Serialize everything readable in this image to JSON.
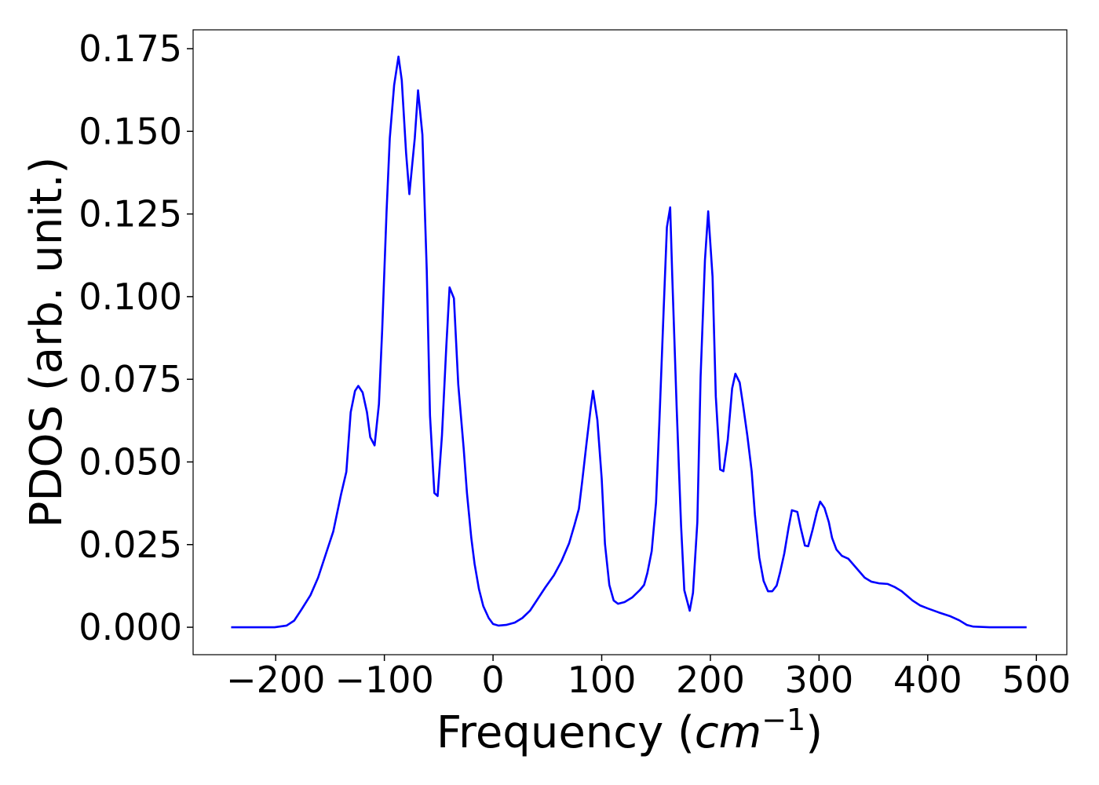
{
  "chart_data": {
    "type": "line",
    "xlabel": [
      "Frequency (",
      "cm",
      "−1",
      ")"
    ],
    "ylabel": "PDOS (arb. unit.)",
    "color": "#0000ff",
    "x": [
      -241,
      -201,
      -190,
      -183,
      -176,
      -168,
      -161,
      -154,
      -147,
      -140,
      -135,
      -131,
      -127,
      -124,
      -120,
      -116,
      -113,
      -109,
      -105,
      -102,
      -98,
      -95,
      -91,
      -87,
      -84,
      -80,
      -77,
      -72,
      -69,
      -65,
      -61,
      -58,
      -54,
      -51,
      -47,
      -43,
      -40,
      -36,
      -32,
      -27,
      -24,
      -20,
      -17,
      -13,
      -9,
      -4,
      0,
      5,
      12,
      20,
      27,
      34,
      41,
      48,
      56,
      63,
      70,
      75,
      79,
      82,
      86,
      90,
      92,
      96,
      100,
      103,
      107,
      111,
      115,
      121,
      128,
      135,
      139,
      142,
      146,
      150,
      153,
      157,
      160,
      163,
      165,
      169,
      173,
      176,
      181,
      184,
      188,
      191,
      195,
      198,
      202,
      205,
      209,
      212,
      216,
      220,
      223,
      227,
      230,
      234,
      238,
      241,
      245,
      249,
      253,
      257,
      261,
      264,
      268,
      272,
      275,
      280,
      283,
      287,
      290,
      294,
      298,
      301,
      305,
      309,
      312,
      316,
      321,
      327,
      332,
      337,
      342,
      348,
      355,
      363,
      370,
      376,
      381,
      386,
      393,
      400,
      410,
      421,
      429,
      436,
      442,
      457,
      491
    ],
    "values": [
      0,
      0,
      0.0005,
      0.002,
      0.0055,
      0.0097,
      0.015,
      0.022,
      0.029,
      0.04,
      0.047,
      0.065,
      0.0715,
      0.073,
      0.071,
      0.065,
      0.0575,
      0.055,
      0.0675,
      0.09,
      0.1256,
      0.148,
      0.164,
      0.1726,
      0.1655,
      0.1434,
      0.131,
      0.148,
      0.1624,
      0.149,
      0.108,
      0.064,
      0.0406,
      0.0397,
      0.058,
      0.085,
      0.1028,
      0.0995,
      0.0734,
      0.054,
      0.0406,
      0.027,
      0.0192,
      0.0116,
      0.0064,
      0.0028,
      0.001,
      0.0005,
      0.0007,
      0.0014,
      0.0028,
      0.005,
      0.0085,
      0.012,
      0.0157,
      0.02,
      0.0254,
      0.031,
      0.0358,
      0.044,
      0.0556,
      0.0667,
      0.0715,
      0.0627,
      0.0449,
      0.0252,
      0.0128,
      0.0081,
      0.0071,
      0.0076,
      0.009,
      0.0112,
      0.0128,
      0.0164,
      0.023,
      0.0377,
      0.0615,
      0.096,
      0.121,
      0.127,
      0.1054,
      0.0662,
      0.031,
      0.0112,
      0.005,
      0.0104,
      0.0318,
      0.0757,
      0.111,
      0.1258,
      0.106,
      0.0698,
      0.0477,
      0.0472,
      0.0567,
      0.0722,
      0.0767,
      0.074,
      0.0674,
      0.058,
      0.0472,
      0.034,
      0.0211,
      0.014,
      0.0109,
      0.0109,
      0.0126,
      0.0164,
      0.0223,
      0.0302,
      0.0354,
      0.0349,
      0.0302,
      0.0247,
      0.0245,
      0.0294,
      0.0349,
      0.038,
      0.0361,
      0.0318,
      0.027,
      0.0235,
      0.0216,
      0.0207,
      0.0188,
      0.0169,
      0.015,
      0.0138,
      0.0133,
      0.0131,
      0.0121,
      0.0109,
      0.0095,
      0.0081,
      0.0066,
      0.0057,
      0.0045,
      0.0033,
      0.0021,
      0.0007,
      0.0002,
      0,
      0
    ],
    "xlim": [
      -276,
      528
    ],
    "ylim": [
      -0.0083,
      0.1807
    ],
    "xticks": [
      {
        "value": -200,
        "label": "−200"
      },
      {
        "value": -100,
        "label": "−100"
      },
      0,
      100,
      200,
      300,
      400,
      500
    ],
    "yticks": [
      {
        "value": 0,
        "label": "0.000"
      },
      {
        "value": 0.025,
        "label": "0.025"
      },
      {
        "value": 0.05,
        "label": "0.050"
      },
      {
        "value": 0.075,
        "label": "0.075"
      },
      {
        "value": 0.1,
        "label": "0.100"
      },
      {
        "value": 0.125,
        "label": "0.125"
      },
      {
        "value": 0.15,
        "label": "0.150"
      },
      {
        "value": 0.175,
        "label": "0.175"
      }
    ]
  }
}
